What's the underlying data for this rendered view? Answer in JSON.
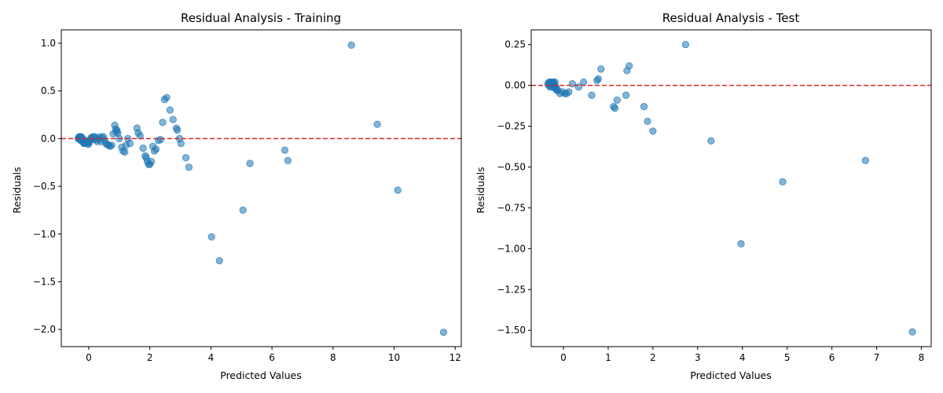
{
  "chart_data": [
    {
      "type": "scatter",
      "title": "Residual Analysis - Training",
      "xlabel": "Predicted Values",
      "ylabel": "Residuals",
      "xlim": [
        -0.9,
        12.2
      ],
      "ylim": [
        -2.18,
        1.14
      ],
      "xticks": [
        0,
        2,
        4,
        6,
        8,
        10,
        12
      ],
      "xtick_labels": [
        "0",
        "2",
        "4",
        "6",
        "8",
        "10",
        "12"
      ],
      "yticks": [
        -2.0,
        -1.5,
        -1.0,
        -0.5,
        0.0,
        0.5,
        1.0
      ],
      "ytick_labels": [
        "−2.0",
        "−1.5",
        "−1.0",
        "−0.5",
        "0.0",
        "0.5",
        "1.0"
      ],
      "reference_line": {
        "y": 0,
        "style": "dashed",
        "color": "#d62728"
      },
      "point_color": "#1f77b4",
      "grid": false,
      "x": [
        -0.35,
        -0.33,
        -0.31,
        -0.3,
        -0.29,
        -0.28,
        -0.27,
        -0.26,
        -0.25,
        -0.24,
        -0.23,
        -0.22,
        -0.2,
        -0.18,
        -0.16,
        -0.14,
        -0.12,
        -0.1,
        -0.08,
        -0.05,
        -0.02,
        0.0,
        0.02,
        0.05,
        0.08,
        0.1,
        0.13,
        0.16,
        0.19,
        0.22,
        0.25,
        0.28,
        0.32,
        0.36,
        0.4,
        0.44,
        0.48,
        0.52,
        0.56,
        0.6,
        0.65,
        0.7,
        0.75,
        0.8,
        0.85,
        0.88,
        0.9,
        0.92,
        0.95,
        1.0,
        1.08,
        1.12,
        1.18,
        1.22,
        1.28,
        1.35,
        1.58,
        1.62,
        1.68,
        1.78,
        1.85,
        1.88,
        1.92,
        1.96,
        2.0,
        2.05,
        2.1,
        2.15,
        2.2,
        2.28,
        2.35,
        2.42,
        2.48,
        2.55,
        2.66,
        2.76,
        2.87,
        2.9,
        2.97,
        3.02,
        3.18,
        3.28,
        4.02,
        4.28,
        5.05,
        5.28,
        6.42,
        6.52,
        8.6,
        9.45,
        10.12,
        11.62
      ],
      "y": [
        0.0,
        0.01,
        0.02,
        -0.01,
        0.02,
        0.0,
        0.01,
        -0.02,
        0.02,
        0.0,
        -0.01,
        0.01,
        -0.02,
        -0.04,
        -0.05,
        -0.03,
        -0.05,
        -0.04,
        -0.02,
        -0.04,
        -0.06,
        -0.05,
        -0.03,
        -0.01,
        0.01,
        0.0,
        0.02,
        -0.01,
        0.02,
        0.01,
        -0.01,
        -0.03,
        0.0,
        0.02,
        -0.03,
        0.01,
        0.02,
        -0.02,
        -0.05,
        -0.06,
        -0.07,
        -0.08,
        -0.07,
        0.05,
        0.14,
        0.1,
        0.07,
        0.09,
        0.06,
        0.0,
        -0.09,
        -0.13,
        -0.14,
        -0.07,
        0.0,
        -0.05,
        0.11,
        0.06,
        0.03,
        -0.1,
        -0.18,
        -0.2,
        -0.24,
        -0.27,
        -0.27,
        -0.24,
        -0.08,
        -0.13,
        -0.11,
        -0.02,
        -0.01,
        0.17,
        0.41,
        0.43,
        0.3,
        0.2,
        0.11,
        0.09,
        0.0,
        -0.05,
        -0.2,
        -0.3,
        -1.03,
        -1.28,
        -0.75,
        -0.26,
        -0.12,
        -0.23,
        0.98,
        0.15,
        -0.54,
        -2.03
      ]
    },
    {
      "type": "scatter",
      "title": "Residual Analysis - Test",
      "xlabel": "Predicted Values",
      "ylabel": "Residuals",
      "xlim": [
        -0.72,
        8.22
      ],
      "ylim": [
        -1.6,
        0.34
      ],
      "xticks": [
        0,
        1,
        2,
        3,
        4,
        5,
        6,
        7,
        8
      ],
      "xtick_labels": [
        "0",
        "1",
        "2",
        "3",
        "4",
        "5",
        "6",
        "7",
        "8"
      ],
      "yticks": [
        -1.5,
        -1.25,
        -1.0,
        -0.75,
        -0.5,
        -0.25,
        0.0,
        0.25
      ],
      "ytick_labels": [
        "−1.50",
        "−1.25",
        "−1.00",
        "−0.75",
        "−0.50",
        "−0.25",
        "0.00",
        "0.25"
      ],
      "reference_line": {
        "y": 0,
        "style": "dashed",
        "color": "#d62728"
      },
      "point_color": "#1f77b4",
      "grid": false,
      "x": [
        -0.35,
        -0.33,
        -0.32,
        -0.31,
        -0.3,
        -0.29,
        -0.28,
        -0.27,
        -0.26,
        -0.25,
        -0.24,
        -0.23,
        -0.22,
        -0.21,
        -0.2,
        -0.19,
        -0.18,
        -0.17,
        -0.16,
        -0.15,
        -0.12,
        -0.08,
        -0.02,
        0.03,
        0.07,
        0.12,
        0.2,
        0.34,
        0.45,
        0.63,
        0.75,
        0.78,
        0.84,
        1.42,
        1.47,
        1.12,
        1.15,
        1.2,
        1.4,
        1.8,
        1.88,
        2.0,
        2.73,
        3.3,
        3.97,
        4.9,
        6.75,
        7.8
      ],
      "y": [
        0.01,
        0.0,
        0.02,
        0.01,
        -0.01,
        0.02,
        0.0,
        0.01,
        0.02,
        -0.01,
        0.01,
        0.0,
        0.02,
        0.01,
        0.0,
        0.02,
        -0.02,
        -0.01,
        -0.02,
        -0.03,
        -0.03,
        -0.05,
        -0.04,
        -0.05,
        -0.05,
        -0.04,
        0.01,
        -0.01,
        0.02,
        -0.06,
        0.03,
        0.04,
        0.1,
        0.09,
        0.12,
        -0.13,
        -0.14,
        -0.09,
        -0.06,
        -0.13,
        -0.22,
        -0.28,
        0.25,
        -0.34,
        -0.97,
        -0.59,
        -0.46,
        -1.51
      ]
    }
  ]
}
